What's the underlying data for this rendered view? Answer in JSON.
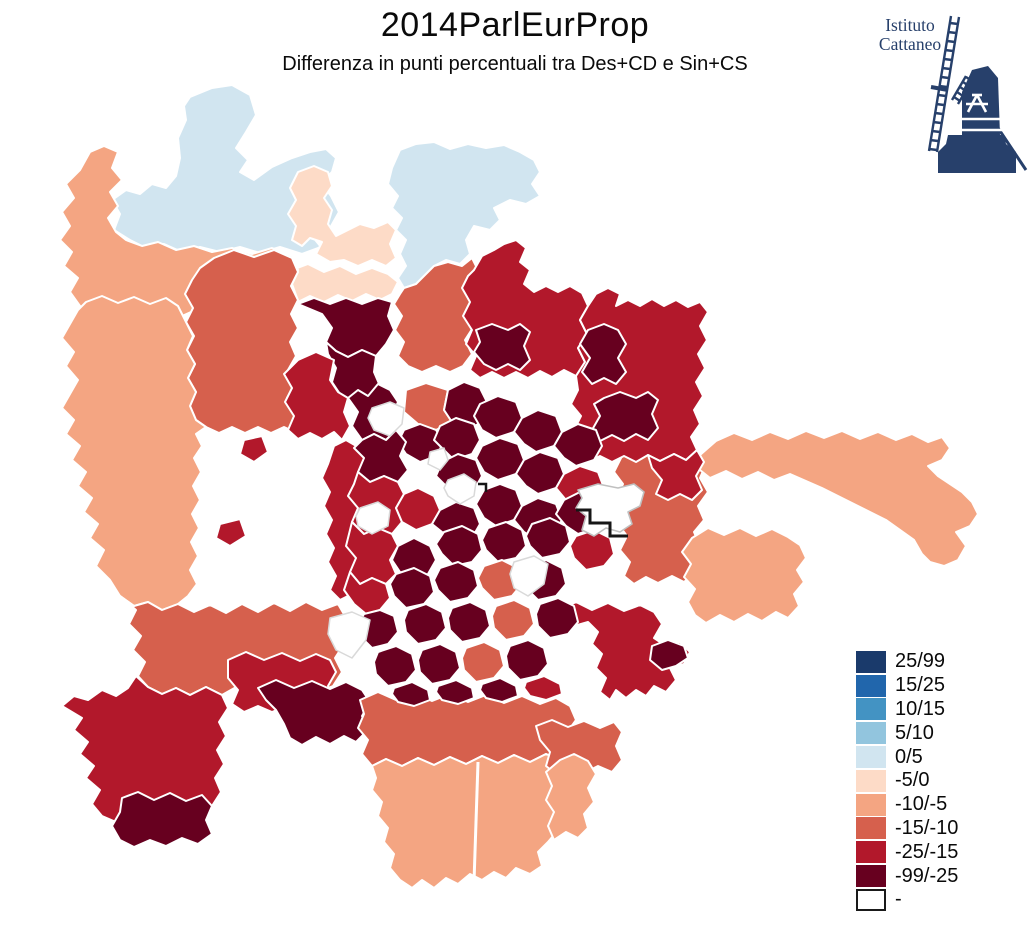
{
  "header": {
    "title": "2014ParlEurProp",
    "subtitle": "Differenza in punti percentuali tra Des+CD e Sin+CS"
  },
  "logo": {
    "name_line1": "Istituto",
    "name_line2": "Cattaneo",
    "color": "#27406b"
  },
  "legend": {
    "items": [
      {
        "label": "25/99",
        "color": "#1a3a6b"
      },
      {
        "label": "15/25",
        "color": "#2166ac"
      },
      {
        "label": "10/15",
        "color": "#4393c3"
      },
      {
        "label": "5/10",
        "color": "#92c5de"
      },
      {
        "label": "0/5",
        "color": "#d1e5f0"
      },
      {
        "label": "-5/0",
        "color": "#fddbc7"
      },
      {
        "label": "-10/-5",
        "color": "#f4a582"
      },
      {
        "label": "-15/-10",
        "color": "#d6604d"
      },
      {
        "label": "-25/-15",
        "color": "#b2182b"
      },
      {
        "label": "-99/-25",
        "color": "#67001f"
      },
      {
        "label": "-",
        "color": "#ffffff",
        "border": "#1a1a1a"
      }
    ]
  },
  "map": {
    "border_color": "#ffffff",
    "na_outline_color": "#161616"
  }
}
